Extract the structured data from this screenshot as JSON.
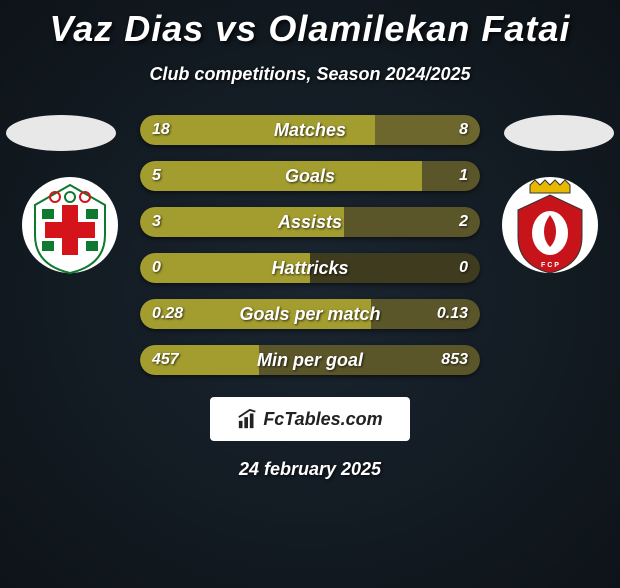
{
  "title": "Vaz Dias vs Olamilekan Fatai",
  "subtitle": "Club competitions, Season 2024/2025",
  "date": "24 february 2025",
  "fctables_label": "FcTables.com",
  "colors": {
    "bar_left": "#a39c2f",
    "bar_right_dark": "#5b5629",
    "bar_right_l0": "#6d672e",
    "bar_right_l3": "#3f3b1e"
  },
  "crests": {
    "left": {
      "bg": "#ffffff",
      "accent1": "#d4141a",
      "accent2": "#0f7a2f"
    },
    "right": {
      "bg": "#ffffff",
      "accent1": "#c7141a",
      "accent2": "#e6b800"
    }
  },
  "rows": [
    {
      "label": "Matches",
      "left_val": "18",
      "right_val": "8",
      "left_pct": 69,
      "right_color": "#6d672e"
    },
    {
      "label": "Goals",
      "left_val": "5",
      "right_val": "1",
      "left_pct": 83,
      "right_color": "#5b5629"
    },
    {
      "label": "Assists",
      "left_val": "3",
      "right_val": "2",
      "left_pct": 60,
      "right_color": "#5b5629"
    },
    {
      "label": "Hattricks",
      "left_val": "0",
      "right_val": "0",
      "left_pct": 50,
      "right_color": "#3f3b1e"
    },
    {
      "label": "Goals per match",
      "left_val": "0.28",
      "right_val": "0.13",
      "left_pct": 68,
      "right_color": "#5b5629"
    },
    {
      "label": "Min per goal",
      "left_val": "457",
      "right_val": "853",
      "left_pct": 35,
      "right_color": "#5b5629"
    }
  ]
}
